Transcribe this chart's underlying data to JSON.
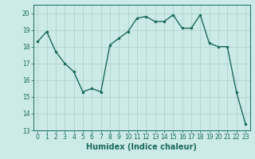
{
  "x": [
    0,
    1,
    2,
    3,
    4,
    5,
    6,
    7,
    8,
    9,
    10,
    11,
    12,
    13,
    14,
    15,
    16,
    17,
    18,
    19,
    20,
    21,
    22,
    23
  ],
  "y": [
    18.3,
    18.9,
    17.7,
    17.0,
    16.5,
    15.3,
    15.5,
    15.3,
    18.1,
    18.5,
    18.9,
    19.7,
    19.8,
    19.5,
    19.5,
    19.9,
    19.1,
    19.1,
    19.9,
    18.2,
    18.0,
    18.0,
    15.3,
    13.4
  ],
  "line_color": "#1a6b5a",
  "marker": ".",
  "marker_size": 3,
  "bg_color": "#cceae7",
  "grid_color": "#aacfcc",
  "xlabel": "Humidex (Indice chaleur)",
  "xlim": [
    -0.5,
    23.5
  ],
  "ylim": [
    13,
    20.5
  ],
  "yticks": [
    13,
    14,
    15,
    16,
    17,
    18,
    19,
    20
  ],
  "xticks": [
    0,
    1,
    2,
    3,
    4,
    5,
    6,
    7,
    8,
    9,
    10,
    11,
    12,
    13,
    14,
    15,
    16,
    17,
    18,
    19,
    20,
    21,
    22,
    23
  ],
  "tick_label_fontsize": 5.5,
  "xlabel_fontsize": 7.0,
  "line_width": 1.0
}
